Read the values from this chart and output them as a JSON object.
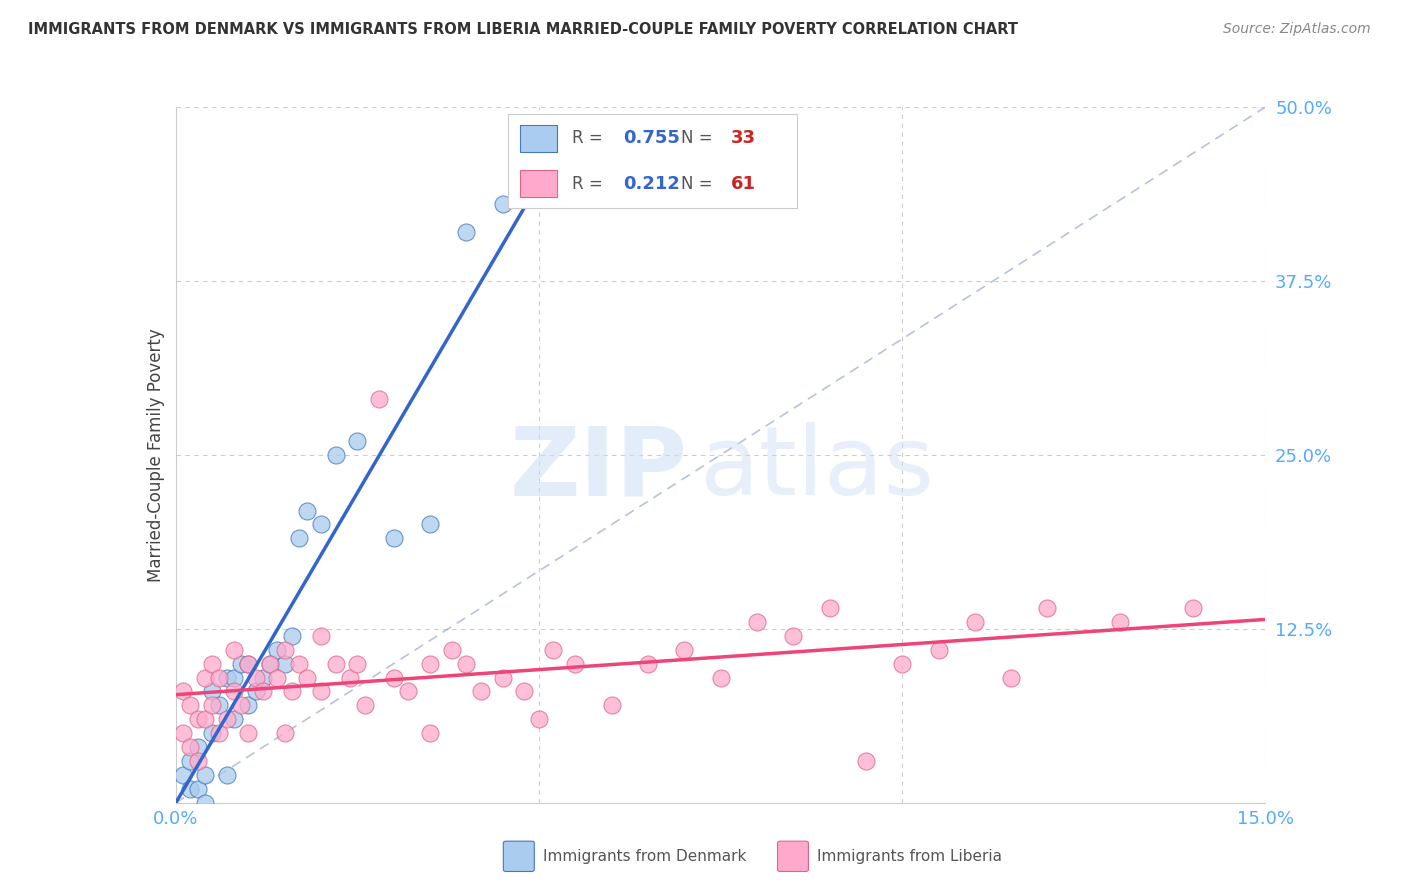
{
  "title": "IMMIGRANTS FROM DENMARK VS IMMIGRANTS FROM LIBERIA MARRIED-COUPLE FAMILY POVERTY CORRELATION CHART",
  "source": "Source: ZipAtlas.com",
  "ylabel": "Married-Couple Family Poverty",
  "xlim": [
    0.0,
    0.15
  ],
  "ylim": [
    0.0,
    0.5
  ],
  "denmark_color": "#aaccee",
  "liberia_color": "#ffaacc",
  "denmark_edge_color": "#4477bb",
  "liberia_edge_color": "#dd6688",
  "denmark_line_color": "#3366cc",
  "liberia_line_color": "#ee4477",
  "denmark_R": 0.755,
  "denmark_N": 33,
  "liberia_R": 0.212,
  "liberia_N": 61,
  "watermark_left": "ZIP",
  "watermark_right": "atlas",
  "background_color": "#ffffff",
  "grid_color": "#cccccc",
  "right_tick_color": "#55aaff",
  "bottom_tick_color": "#55aaff",
  "denmark_x": [
    0.001,
    0.002,
    0.002,
    0.003,
    0.003,
    0.004,
    0.004,
    0.005,
    0.005,
    0.006,
    0.007,
    0.007,
    0.008,
    0.008,
    0.009,
    0.01,
    0.01,
    0.011,
    0.012,
    0.013,
    0.014,
    0.015,
    0.016,
    0.017,
    0.018,
    0.02,
    0.022,
    0.025,
    0.03,
    0.035,
    0.04,
    0.045,
    0.05
  ],
  "denmark_y": [
    0.02,
    0.01,
    0.03,
    0.01,
    0.04,
    0.0,
    0.02,
    0.05,
    0.08,
    0.07,
    0.09,
    0.02,
    0.06,
    0.09,
    0.1,
    0.07,
    0.1,
    0.08,
    0.09,
    0.1,
    0.11,
    0.1,
    0.12,
    0.19,
    0.21,
    0.2,
    0.25,
    0.26,
    0.19,
    0.2,
    0.41,
    0.43,
    0.45
  ],
  "liberia_x": [
    0.001,
    0.001,
    0.002,
    0.002,
    0.003,
    0.003,
    0.004,
    0.004,
    0.005,
    0.005,
    0.006,
    0.006,
    0.007,
    0.008,
    0.008,
    0.009,
    0.01,
    0.01,
    0.011,
    0.012,
    0.013,
    0.014,
    0.015,
    0.015,
    0.016,
    0.017,
    0.018,
    0.02,
    0.02,
    0.022,
    0.024,
    0.025,
    0.026,
    0.028,
    0.03,
    0.032,
    0.035,
    0.035,
    0.038,
    0.04,
    0.042,
    0.045,
    0.048,
    0.05,
    0.052,
    0.055,
    0.06,
    0.065,
    0.07,
    0.075,
    0.08,
    0.085,
    0.09,
    0.095,
    0.1,
    0.105,
    0.11,
    0.115,
    0.12,
    0.13,
    0.14
  ],
  "liberia_y": [
    0.05,
    0.08,
    0.04,
    0.07,
    0.03,
    0.06,
    0.06,
    0.09,
    0.07,
    0.1,
    0.05,
    0.09,
    0.06,
    0.08,
    0.11,
    0.07,
    0.05,
    0.1,
    0.09,
    0.08,
    0.1,
    0.09,
    0.05,
    0.11,
    0.08,
    0.1,
    0.09,
    0.08,
    0.12,
    0.1,
    0.09,
    0.1,
    0.07,
    0.29,
    0.09,
    0.08,
    0.1,
    0.05,
    0.11,
    0.1,
    0.08,
    0.09,
    0.08,
    0.06,
    0.11,
    0.1,
    0.07,
    0.1,
    0.11,
    0.09,
    0.13,
    0.12,
    0.14,
    0.03,
    0.1,
    0.11,
    0.13,
    0.09,
    0.14,
    0.13,
    0.14
  ]
}
